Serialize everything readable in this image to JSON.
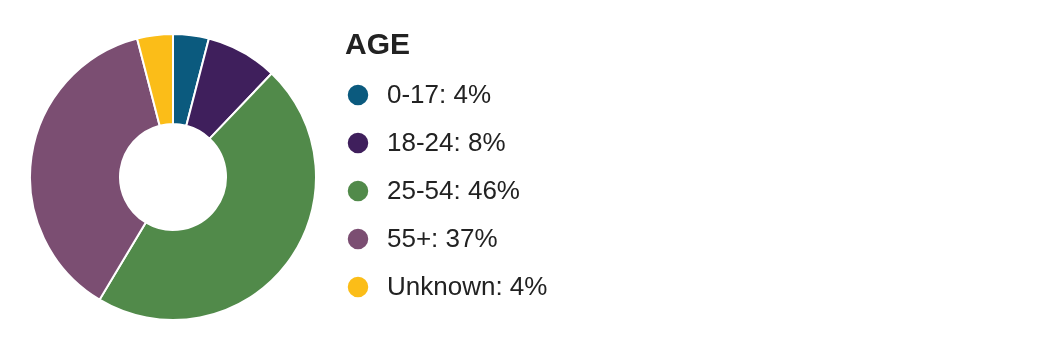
{
  "chart_data": {
    "type": "donut",
    "legend_title": "AGE",
    "legend": "right",
    "categories": [
      "0-17",
      "18-24",
      "25-54",
      "55+",
      "Unknown"
    ],
    "values": [
      4,
      8,
      46,
      37,
      4
    ],
    "value_labels": [
      "4%",
      "8%",
      "46%",
      "37%",
      "4%"
    ],
    "colors": [
      "#0b5a7e",
      "#3f1f5c",
      "#518a4a",
      "#7b4e72",
      "#fbbd18"
    ]
  }
}
